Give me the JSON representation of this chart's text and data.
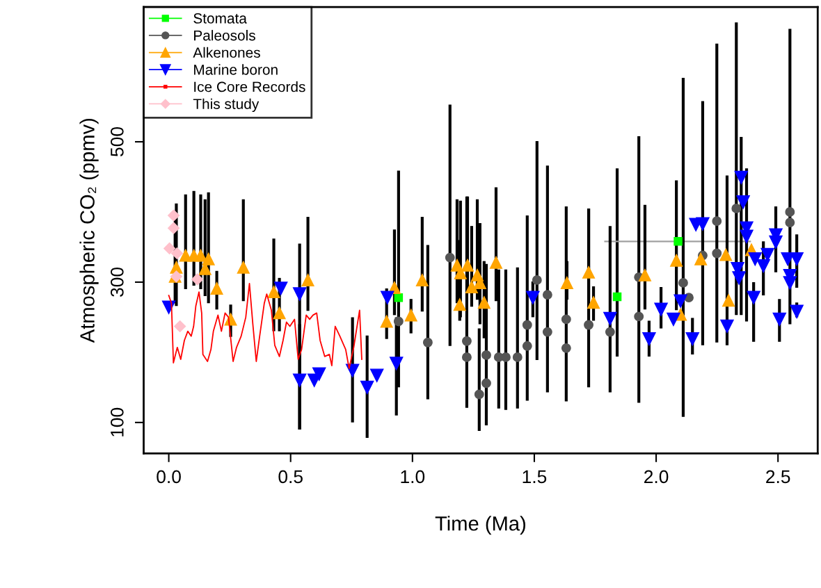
{
  "chart_data": {
    "type": "scatter",
    "xlabel": "Time (Ma)",
    "ylabel": "Atmospheric CO₂ (ppmv)",
    "xlim": [
      -0.103,
      2.663
    ],
    "ylim": [
      56,
      692
    ],
    "xticks": [
      {
        "value": 0,
        "label": "0.0"
      },
      {
        "value": 0.5,
        "label": "0.5"
      },
      {
        "value": 1,
        "label": "1.0"
      },
      {
        "value": 1.5,
        "label": "1.5"
      },
      {
        "value": 2,
        "label": "2.0"
      },
      {
        "value": 2.5,
        "label": "2.5"
      }
    ],
    "yticks": [
      100,
      300,
      500
    ],
    "grid": false,
    "legend": "top left",
    "series": [
      {
        "name": "Stomata",
        "color": "#00ff00",
        "marker": "square",
        "x": [
          0.943,
          1.84,
          2.09
        ],
        "values": [
          278,
          279,
          358
        ],
        "errors": [
          null,
          [
            194,
            462
          ],
          null
        ],
        "xerrors": [
          null,
          null,
          [
            1.79,
            2.386
          ]
        ]
      },
      {
        "name": "Paleosols",
        "color": "#555555",
        "marker": "circle",
        "x": [
          0.943,
          1.063,
          1.154,
          1.223,
          1.223,
          1.274,
          1.303,
          1.303,
          1.354,
          1.383,
          1.431,
          1.471,
          1.471,
          1.511,
          1.554,
          1.554,
          1.631,
          1.631,
          1.723,
          1.811,
          1.929,
          1.929,
          2.111,
          2.134,
          2.191,
          2.249,
          2.249,
          2.329,
          2.549,
          2.549
        ],
        "values": [
          244,
          214,
          335,
          216,
          193,
          140,
          156,
          196,
          193,
          193,
          193,
          209,
          239,
          303,
          282,
          229,
          247,
          206,
          239,
          229,
          307,
          251,
          299,
          278,
          338,
          387,
          341,
          405,
          400,
          385
        ],
        "errors": [
          [
            150,
            459
          ],
          [
            133,
            353
          ],
          [
            209,
            553
          ],
          [
            121,
            422
          ],
          null,
          [
            88,
            234
          ],
          null,
          [
            96,
            326
          ],
          [
            120,
            318
          ],
          [
            118,
            318
          ],
          [
            120,
            321
          ],
          [
            131,
            395
          ],
          null,
          [
            189,
            501
          ],
          [
            143,
            466
          ],
          null,
          [
            130,
            408
          ],
          null,
          [
            150,
            405
          ],
          [
            143,
            380
          ],
          [
            128,
            508
          ],
          null,
          [
            108,
            591
          ],
          null,
          null,
          [
            214,
            640
          ],
          null,
          [
            253,
            670
          ],
          [
            240,
            661
          ],
          null
        ]
      },
      {
        "name": "Alkenones",
        "color": "#ffa500",
        "marker": "triangle",
        "x": [
          0.031,
          0.026,
          0.069,
          0.103,
          0.131,
          0.163,
          0.149,
          0.197,
          0.306,
          0.254,
          0.431,
          0.454,
          0.571,
          0.926,
          0.894,
          0.994,
          1.04,
          1.183,
          1.226,
          1.197,
          1.266,
          1.277,
          1.243,
          1.194,
          1.294,
          1.343,
          1.634,
          1.723,
          1.743,
          1.954,
          2.083,
          2.183,
          2.286,
          2.391,
          2.297,
          2.1
        ],
        "values": [
          321,
          308,
          338,
          338,
          338,
          333,
          319,
          291,
          321,
          247,
          286,
          256,
          303,
          292,
          244,
          253,
          303,
          324,
          324,
          313,
          310,
          299,
          293,
          268,
          271,
          328,
          299,
          314,
          271,
          310,
          331,
          333,
          339,
          346,
          274,
          254
        ],
        "errors": [
          [
            266,
            412
          ],
          [
            270,
            400
          ],
          [
            290,
            425
          ],
          [
            295,
            430
          ],
          [
            290,
            425
          ],
          [
            270,
            428
          ],
          [
            280,
            418
          ],
          [
            261,
            316
          ],
          [
            273,
            418
          ],
          [
            222,
            268
          ],
          [
            230,
            362
          ],
          [
            230,
            306
          ],
          [
            259,
            393
          ],
          [
            253,
            375
          ],
          [
            219,
            291
          ],
          [
            227,
            276
          ],
          [
            258,
            393
          ],
          [
            270,
            418
          ],
          [
            290,
            422
          ],
          [
            250,
            416
          ],
          [
            275,
            418
          ],
          [
            240,
            384
          ],
          [
            265,
            380
          ],
          [
            245,
            360
          ],
          [
            220,
            330
          ],
          [
            273,
            435
          ],
          [
            275,
            330
          ],
          [
            275,
            405
          ],
          [
            245,
            294
          ],
          [
            261,
            410
          ],
          [
            260,
            445
          ],
          null,
          null,
          null,
          null,
          null
        ]
      },
      {
        "name": "Marine boron",
        "color": "#0000ff",
        "marker": "triangle_down",
        "x": [
          0.0,
          0.46,
          0.537,
          0.537,
          0.597,
          0.617,
          0.754,
          0.814,
          0.854,
          0.897,
          0.934,
          1.494,
          1.811,
          1.971,
          2.02,
          2.071,
          2.1,
          2.149,
          2.163,
          2.191,
          2.291,
          2.334,
          2.34,
          2.349,
          2.357,
          2.371,
          2.371,
          2.4,
          2.406,
          2.44,
          2.457,
          2.491,
          2.491,
          2.506,
          2.54,
          2.549,
          2.549,
          2.577,
          2.577
        ],
        "values": [
          264,
          291,
          283,
          160,
          160,
          169,
          174,
          150,
          167,
          278,
          184,
          278,
          248,
          219,
          261,
          247,
          273,
          219,
          382,
          383,
          237,
          319,
          306,
          449,
          414,
          377,
          365,
          278,
          333,
          323,
          339,
          367,
          357,
          247,
          333,
          309,
          299,
          333,
          258
        ],
        "errors": [
          null,
          null,
          [
            90,
            355
          ],
          [
            90,
            240
          ],
          null,
          null,
          [
            100,
            250
          ],
          [
            78,
            224
          ],
          null,
          null,
          [
            110,
            250
          ],
          [
            250,
            301
          ],
          null,
          [
            194,
            245
          ],
          [
            234,
            293
          ],
          null,
          null,
          [
            197,
            249
          ],
          null,
          [
            210,
            558
          ],
          [
            210,
            452
          ],
          null,
          null,
          [
            253,
            507
          ],
          null,
          [
            244,
            462
          ],
          null,
          [
            215,
            300
          ],
          null,
          [
            281,
            358
          ],
          null,
          [
            314,
            408
          ],
          null,
          [
            215,
            276
          ],
          null,
          null,
          null,
          [
            292,
            368
          ],
          [
            250,
            271
          ]
        ]
      },
      {
        "name": "Ice Core Records",
        "color": "#ff0000",
        "type": "line",
        "marker": "none",
        "x": [
          0.0,
          0.011,
          0.019,
          0.035,
          0.049,
          0.064,
          0.078,
          0.092,
          0.102,
          0.111,
          0.124,
          0.135,
          0.14,
          0.159,
          0.173,
          0.183,
          0.202,
          0.216,
          0.231,
          0.245,
          0.264,
          0.278,
          0.297,
          0.316,
          0.331,
          0.345,
          0.359,
          0.373,
          0.392,
          0.402,
          0.421,
          0.435,
          0.454,
          0.469,
          0.483,
          0.497,
          0.516,
          0.531,
          0.545,
          0.564,
          0.578,
          0.592,
          0.607,
          0.621,
          0.64,
          0.659,
          0.669,
          0.683,
          0.702,
          0.726,
          0.74,
          0.759,
          0.783,
          0.792
        ],
        "values": [
          281,
          270,
          185,
          207,
          190,
          217,
          230,
          223,
          237,
          266,
          286,
          256,
          197,
          187,
          204,
          230,
          253,
          230,
          256,
          250,
          187,
          207,
          223,
          250,
          298,
          240,
          187,
          223,
          270,
          283,
          260,
          210,
          194,
          217,
          243,
          237,
          247,
          190,
          204,
          253,
          247,
          253,
          256,
          217,
          194,
          197,
          181,
          237,
          223,
          204,
          177,
          207,
          260,
          190
        ]
      },
      {
        "name": "This study",
        "color": "#ffc0cb",
        "marker": "diamond",
        "x": [
          0.02,
          0.02,
          0.003,
          0.034,
          0.031,
          0.117,
          0.046
        ],
        "values": [
          395,
          377,
          348,
          341,
          308,
          304,
          237
        ]
      }
    ]
  }
}
